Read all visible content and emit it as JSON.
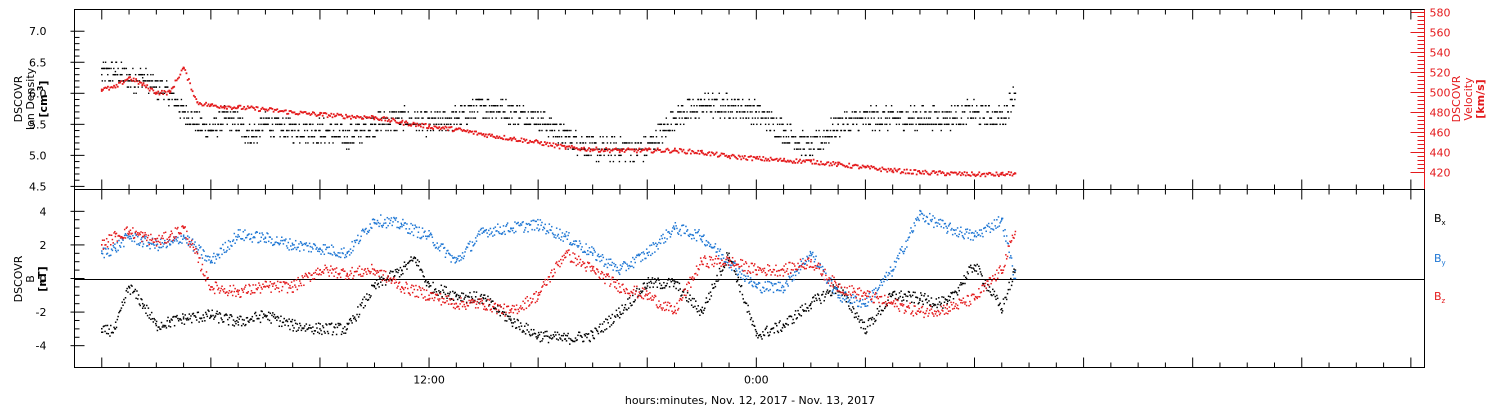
{
  "chart_data": [
    {
      "type": "scatter",
      "panel": "top",
      "xlabel": "hours:minutes, Nov. 12, 2017 - Nov. 13, 2017",
      "x_unit": "hours since Nov. 12, 2017 00:00",
      "xlim": [
        -1.0,
        48.5
      ],
      "x_ticks": [
        {
          "x": 12,
          "label": "12:00"
        },
        {
          "x": 24,
          "label": "0:00"
        }
      ],
      "ylabel_left": [
        "DSCOVR",
        "Ion Density",
        "[cm",
        "-3",
        "]"
      ],
      "ylim_left": [
        4.45,
        7.35
      ],
      "y_ticks_left": [
        4.5,
        5.0,
        5.5,
        6.0,
        6.5,
        7.0
      ],
      "ylabel_right": [
        "DSCOVR",
        "Velocity",
        "[km/s]"
      ],
      "ylim_right": [
        403,
        583
      ],
      "y_ticks_right": [
        420,
        440,
        460,
        480,
        500,
        520,
        540,
        560,
        580
      ],
      "series": [
        {
          "axis": "left",
          "color": "#000000",
          "x": [
            0.0,
            0.5,
            1.0,
            1.5,
            2.0,
            2.5,
            3.0,
            3.5,
            4.0,
            4.5,
            5.0,
            5.5,
            6.0,
            7.0,
            8.0,
            9.0,
            10.0,
            11.0,
            12.0,
            13.0,
            14.0,
            15.0,
            16.0,
            17.0,
            18.0,
            19.0,
            20.0,
            21.0,
            22.0,
            23.0,
            24.0,
            25.0,
            26.0,
            27.0,
            28.0,
            29.0,
            30.0,
            31.0,
            32.0,
            33.0,
            33.5
          ],
          "y": [
            6.3,
            6.35,
            6.2,
            6.25,
            6.1,
            6.0,
            5.7,
            5.5,
            5.4,
            5.6,
            5.5,
            5.3,
            5.5,
            5.4,
            5.4,
            5.3,
            5.5,
            5.6,
            5.5,
            5.6,
            5.8,
            5.7,
            5.6,
            5.3,
            5.1,
            5.1,
            5.1,
            5.6,
            5.8,
            5.8,
            5.7,
            5.4,
            5.1,
            5.5,
            5.6,
            5.6,
            5.6,
            5.6,
            5.7,
            5.6,
            6.0
          ]
        },
        {
          "axis": "right",
          "color": "#e41a1c",
          "x": [
            0.0,
            0.5,
            1.0,
            1.5,
            2.0,
            2.5,
            3.0,
            3.5,
            4.0,
            4.5,
            5.0,
            6.0,
            7.0,
            8.0,
            9.0,
            10.0,
            11.0,
            12.0,
            13.0,
            14.0,
            15.0,
            16.0,
            17.0,
            18.0,
            19.0,
            20.0,
            21.0,
            22.0,
            23.0,
            24.0,
            25.0,
            26.0,
            27.0,
            28.0,
            29.0,
            30.0,
            31.0,
            32.0,
            33.0,
            33.5
          ],
          "y": [
            503,
            505,
            515,
            508,
            500,
            500,
            525,
            490,
            487,
            486,
            485,
            483,
            480,
            478,
            476,
            475,
            470,
            466,
            463,
            458,
            454,
            450,
            445,
            443,
            442,
            442,
            442,
            440,
            436,
            434,
            432,
            431,
            428,
            425,
            422,
            420,
            419,
            418,
            418,
            419
          ]
        }
      ]
    },
    {
      "type": "scatter",
      "panel": "bottom",
      "xlabel": "hours:minutes, Nov. 12, 2017 - Nov. 13, 2017",
      "x_unit": "hours since Nov. 12, 2017 00:00",
      "xlim": [
        -1.0,
        48.5
      ],
      "x_ticks": [
        {
          "x": 12,
          "label": "12:00"
        },
        {
          "x": 24,
          "label": "0:00"
        }
      ],
      "ylabel": [
        "DSCOVR",
        "B",
        "[nT]"
      ],
      "ylim": [
        -5.3,
        5.3
      ],
      "y_ticks": [
        -4,
        -2,
        0,
        2,
        4
      ],
      "zero_line": true,
      "legend_position": "right",
      "series": [
        {
          "legend": "Bx",
          "color": "#000000",
          "x": [
            0.0,
            0.5,
            1.0,
            1.5,
            2.0,
            2.5,
            3.0,
            4.0,
            5.0,
            6.0,
            7.0,
            8.0,
            9.0,
            10.0,
            11.0,
            11.5,
            12.0,
            13.0,
            14.0,
            15.0,
            16.0,
            17.0,
            18.0,
            19.0,
            20.0,
            21.0,
            22.0,
            23.0,
            24.0,
            25.0,
            26.0,
            27.0,
            28.0,
            29.0,
            30.0,
            31.0,
            32.0,
            33.0,
            33.5
          ],
          "y": [
            -3.2,
            -3.0,
            -0.5,
            -1.5,
            -2.8,
            -2.6,
            -2.4,
            -2.2,
            -2.6,
            -2.2,
            -2.8,
            -3.0,
            -3.0,
            -0.5,
            0.5,
            1.2,
            -0.5,
            -1.0,
            -1.2,
            -2.5,
            -3.4,
            -3.6,
            -3.4,
            -2.0,
            -0.3,
            -0.3,
            -2.0,
            1.5,
            -3.4,
            -2.8,
            -1.5,
            -0.5,
            -3.0,
            -1.0,
            -1.2,
            -1.5,
            0.8,
            -1.8,
            0.5
          ]
        },
        {
          "legend": "By",
          "color": "#1f77d4",
          "x": [
            0.0,
            0.5,
            1.0,
            1.5,
            2.0,
            2.5,
            3.0,
            4.0,
            5.0,
            6.0,
            7.0,
            8.0,
            9.0,
            10.0,
            11.0,
            12.0,
            13.0,
            14.0,
            15.0,
            16.0,
            17.0,
            18.0,
            19.0,
            20.0,
            21.0,
            22.0,
            23.0,
            24.0,
            25.0,
            26.0,
            27.0,
            28.0,
            29.0,
            30.0,
            31.0,
            32.0,
            33.0,
            33.5
          ],
          "y": [
            1.5,
            1.8,
            2.5,
            2.2,
            2.0,
            2.0,
            2.5,
            1.0,
            2.6,
            2.4,
            2.0,
            1.8,
            1.5,
            3.5,
            3.2,
            2.5,
            1.0,
            2.8,
            3.0,
            3.2,
            2.5,
            1.5,
            0.5,
            1.5,
            3.0,
            2.5,
            1.0,
            -0.5,
            -0.5,
            1.5,
            -1.0,
            -1.5,
            0.5,
            3.8,
            3.0,
            2.5,
            3.5,
            0.0
          ]
        },
        {
          "legend": "Bz",
          "color": "#e41a1c",
          "x": [
            0.0,
            0.5,
            1.0,
            1.5,
            2.0,
            2.5,
            3.0,
            4.0,
            5.0,
            6.0,
            7.0,
            8.0,
            9.0,
            10.0,
            11.0,
            12.0,
            13.0,
            14.0,
            15.0,
            16.0,
            17.0,
            18.0,
            19.0,
            20.0,
            21.0,
            22.0,
            23.0,
            24.0,
            25.0,
            26.0,
            27.0,
            28.0,
            29.0,
            30.0,
            31.0,
            32.0,
            33.0,
            33.5
          ],
          "y": [
            2.0,
            2.5,
            2.8,
            2.5,
            2.2,
            2.5,
            3.0,
            -0.5,
            -0.8,
            -0.5,
            -0.5,
            0.5,
            0.3,
            0.5,
            -0.5,
            -1.0,
            -1.5,
            -1.5,
            -2.0,
            -1.0,
            1.5,
            0.5,
            -0.5,
            -1.0,
            -2.0,
            1.0,
            1.0,
            0.5,
            0.5,
            1.0,
            -0.5,
            -1.0,
            -1.5,
            -2.0,
            -1.8,
            -1.2,
            0.5,
            2.8
          ]
        }
      ]
    }
  ]
}
